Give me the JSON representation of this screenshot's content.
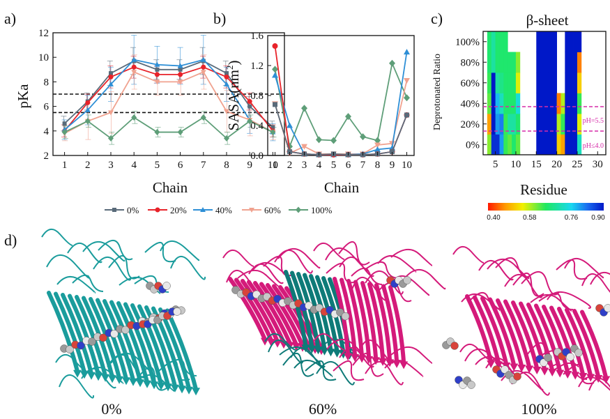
{
  "panels": {
    "a": "a)",
    "b": "b)",
    "c": "c)",
    "d": "d)"
  },
  "chart_data": [
    {
      "type": "line",
      "panel": "a)",
      "xlabel": "Chain",
      "ylabel": "pKa",
      "xlim": [
        0.5,
        10.5
      ],
      "ylim": [
        2,
        12
      ],
      "x": [
        1,
        2,
        3,
        4,
        5,
        6,
        7,
        8,
        9,
        10
      ],
      "xticks": [
        "1",
        "2",
        "3",
        "4",
        "5",
        "6",
        "7",
        "8",
        "9",
        "10"
      ],
      "yticks": [
        "2",
        "4",
        "6",
        "8",
        "10",
        "12"
      ],
      "reference_lines": [
        7.0,
        5.5
      ],
      "series": [
        {
          "name": "0%",
          "color": "#5a6b7a",
          "marker": "square",
          "values": [
            4.6,
            6.4,
            8.7,
            9.7,
            9.0,
            9.0,
            9.7,
            8.7,
            6.0,
            4.3
          ],
          "err": [
            0.6,
            0.7,
            1.0,
            1.1,
            0.8,
            0.8,
            1.1,
            1.0,
            0.8,
            0.5
          ]
        },
        {
          "name": "20%",
          "color": "#e8232a",
          "marker": "circle",
          "values": [
            4.0,
            6.3,
            8.4,
            9.2,
            8.6,
            8.6,
            9.2,
            8.4,
            6.4,
            4.0
          ],
          "err": [
            0.5,
            0.7,
            0.9,
            0.9,
            0.7,
            0.7,
            0.9,
            0.9,
            0.7,
            0.5
          ]
        },
        {
          "name": "40%",
          "color": "#2e8fd6",
          "marker": "triangle",
          "values": [
            4.1,
            5.7,
            7.8,
            9.8,
            9.4,
            9.3,
            9.8,
            7.8,
            4.9,
            3.9
          ],
          "err": [
            0.8,
            1.2,
            1.4,
            2.0,
            1.5,
            1.5,
            2.0,
            1.4,
            1.1,
            0.7
          ]
        },
        {
          "name": "60%",
          "color": "#f0a28f",
          "marker": "triangle-down",
          "values": [
            3.8,
            4.8,
            5.5,
            8.8,
            8.0,
            8.0,
            8.8,
            5.6,
            4.9,
            3.9
          ],
          "err": [
            0.6,
            1.5,
            1.7,
            1.4,
            1.1,
            1.1,
            1.4,
            1.7,
            1.3,
            0.6
          ]
        },
        {
          "name": "100%",
          "color": "#5e9e78",
          "marker": "diamond",
          "values": [
            3.9,
            4.8,
            3.4,
            5.1,
            3.9,
            3.9,
            5.1,
            3.4,
            4.8,
            3.9
          ],
          "err": [
            0.5,
            0.5,
            0.5,
            0.5,
            0.4,
            0.4,
            0.5,
            0.5,
            0.5,
            0.4
          ]
        }
      ],
      "legend_position": "bottom"
    },
    {
      "type": "line",
      "panel": "b)",
      "xlabel": "Chain",
      "ylabel_main": "SASA(nm",
      "ylabel_sup": "2",
      "ylabel_end": ")",
      "xlim": [
        0.5,
        10.5
      ],
      "ylim": [
        0,
        1.6
      ],
      "x": [
        1,
        2,
        3,
        4,
        5,
        6,
        7,
        8,
        9,
        10
      ],
      "xticks": [
        "1",
        "2",
        "3",
        "4",
        "5",
        "6",
        "7",
        "8",
        "9",
        "10"
      ],
      "yticks": [
        "0.0",
        "0.4",
        "0.8",
        "1.2",
        "1.6"
      ],
      "series": [
        {
          "name": "0%",
          "color": "#5a6b7a",
          "marker": "square",
          "values": [
            0.68,
            0.05,
            0.02,
            0.01,
            0.02,
            0.01,
            0.01,
            0.02,
            0.05,
            0.54
          ]
        },
        {
          "name": "20%",
          "color": "#e8232a",
          "marker": "circle",
          "values": [
            1.46,
            0.05,
            0.02,
            0.01,
            0.01,
            0.01,
            0.01,
            0.02,
            0.05,
            0.54
          ]
        },
        {
          "name": "40%",
          "color": "#2e8fd6",
          "marker": "triangle",
          "values": [
            1.07,
            0.4,
            0.02,
            0.01,
            0.01,
            0.01,
            0.02,
            0.08,
            0.1,
            1.38
          ]
        },
        {
          "name": "60%",
          "color": "#f0a28f",
          "marker": "triangle-down",
          "values": [
            0.69,
            0.03,
            0.12,
            0.02,
            0.02,
            0.02,
            0.02,
            0.14,
            0.16,
            1.0
          ]
        },
        {
          "name": "100%",
          "color": "#5e9e78",
          "marker": "diamond",
          "values": [
            1.15,
            0.12,
            0.63,
            0.21,
            0.2,
            0.52,
            0.25,
            0.2,
            1.23,
            0.77
          ]
        }
      ]
    },
    {
      "type": "heatmap",
      "panel": "c)",
      "title": "β-sheet",
      "xlabel": "Residue",
      "ylabel": "Deprotonated Ratio",
      "xticks": [
        "5",
        "10",
        "15",
        "20",
        "25",
        "30"
      ],
      "yticks": [
        "0%",
        "20%",
        "40%",
        "60%",
        "80%",
        "100%"
      ],
      "rows": [
        "0%",
        "20%",
        "40%",
        "60%",
        "80%",
        "100%"
      ],
      "reference_labels": [
        "pH=5.5",
        "pH≤4.0"
      ],
      "colorbar_ticks": [
        "0.40",
        "0.58",
        "0.76",
        "0.90"
      ],
      "colorbar_range": [
        0.4,
        0.9
      ],
      "values": [
        [
          0.6,
          0.88,
          0.88,
          0.8,
          0.64,
          0.62,
          0.66,
          0.62,
          0,
          0,
          0,
          0,
          0.9,
          0.9,
          0.9,
          0.9,
          0.9,
          0.52,
          0.48,
          0.9,
          0.9,
          0.9,
          0.72,
          0,
          0,
          0,
          0,
          0
        ],
        [
          0.48,
          0.9,
          0.8,
          0.82,
          0.64,
          0.7,
          0.7,
          0.66,
          0,
          0,
          0,
          0,
          0.9,
          0.9,
          0.9,
          0.9,
          0.9,
          0.58,
          0.64,
          0.9,
          0.9,
          0.9,
          0.56,
          0,
          0,
          0,
          0,
          0
        ],
        [
          0.62,
          0.9,
          0.78,
          0.72,
          0.66,
          0.66,
          0.66,
          0.74,
          0,
          0,
          0,
          0,
          0.9,
          0.9,
          0.9,
          0.9,
          0.9,
          0.46,
          0.58,
          0.9,
          0.9,
          0.9,
          0.64,
          0,
          0,
          0,
          0,
          0
        ],
        [
          0.64,
          0.9,
          0.7,
          0.68,
          0.66,
          0.66,
          0.66,
          0.56,
          0,
          0,
          0,
          0,
          0.9,
          0.9,
          0.9,
          0.9,
          0.9,
          0,
          0,
          0.9,
          0.9,
          0.9,
          0.52,
          0,
          0,
          0,
          0,
          0
        ],
        [
          0.66,
          0.7,
          0.66,
          0.66,
          0.66,
          0.66,
          0.66,
          0.6,
          0,
          0,
          0,
          0,
          0.9,
          0.9,
          0.9,
          0.9,
          0.9,
          0,
          0,
          0.9,
          0.9,
          0.9,
          0.46,
          0,
          0,
          0,
          0,
          0
        ],
        [
          0.66,
          0.7,
          0.66,
          0.66,
          0.66,
          0,
          0,
          0,
          0,
          0,
          0,
          0,
          0.9,
          0.9,
          0.9,
          0.9,
          0.9,
          0,
          0,
          0.9,
          0.9,
          0.9,
          0.9,
          0,
          0,
          0,
          0,
          0
        ]
      ]
    }
  ],
  "legend": {
    "items": [
      {
        "label": "0%",
        "color": "#5a6b7a",
        "marker": "square"
      },
      {
        "label": "20%",
        "color": "#e8232a",
        "marker": "circle"
      },
      {
        "label": "40%",
        "color": "#2e8fd6",
        "marker": "triangle"
      },
      {
        "label": "60%",
        "color": "#f0a28f",
        "marker": "triangle-down"
      },
      {
        "label": "100%",
        "color": "#5e9e78",
        "marker": "diamond"
      }
    ]
  },
  "structures": [
    {
      "caption": "0%",
      "colors": [
        "#1a9c9c"
      ]
    },
    {
      "caption": "60%",
      "colors": [
        "#0e7a78",
        "#d41a7a"
      ]
    },
    {
      "caption": "100%",
      "colors": [
        "#d41a7a"
      ]
    }
  ]
}
